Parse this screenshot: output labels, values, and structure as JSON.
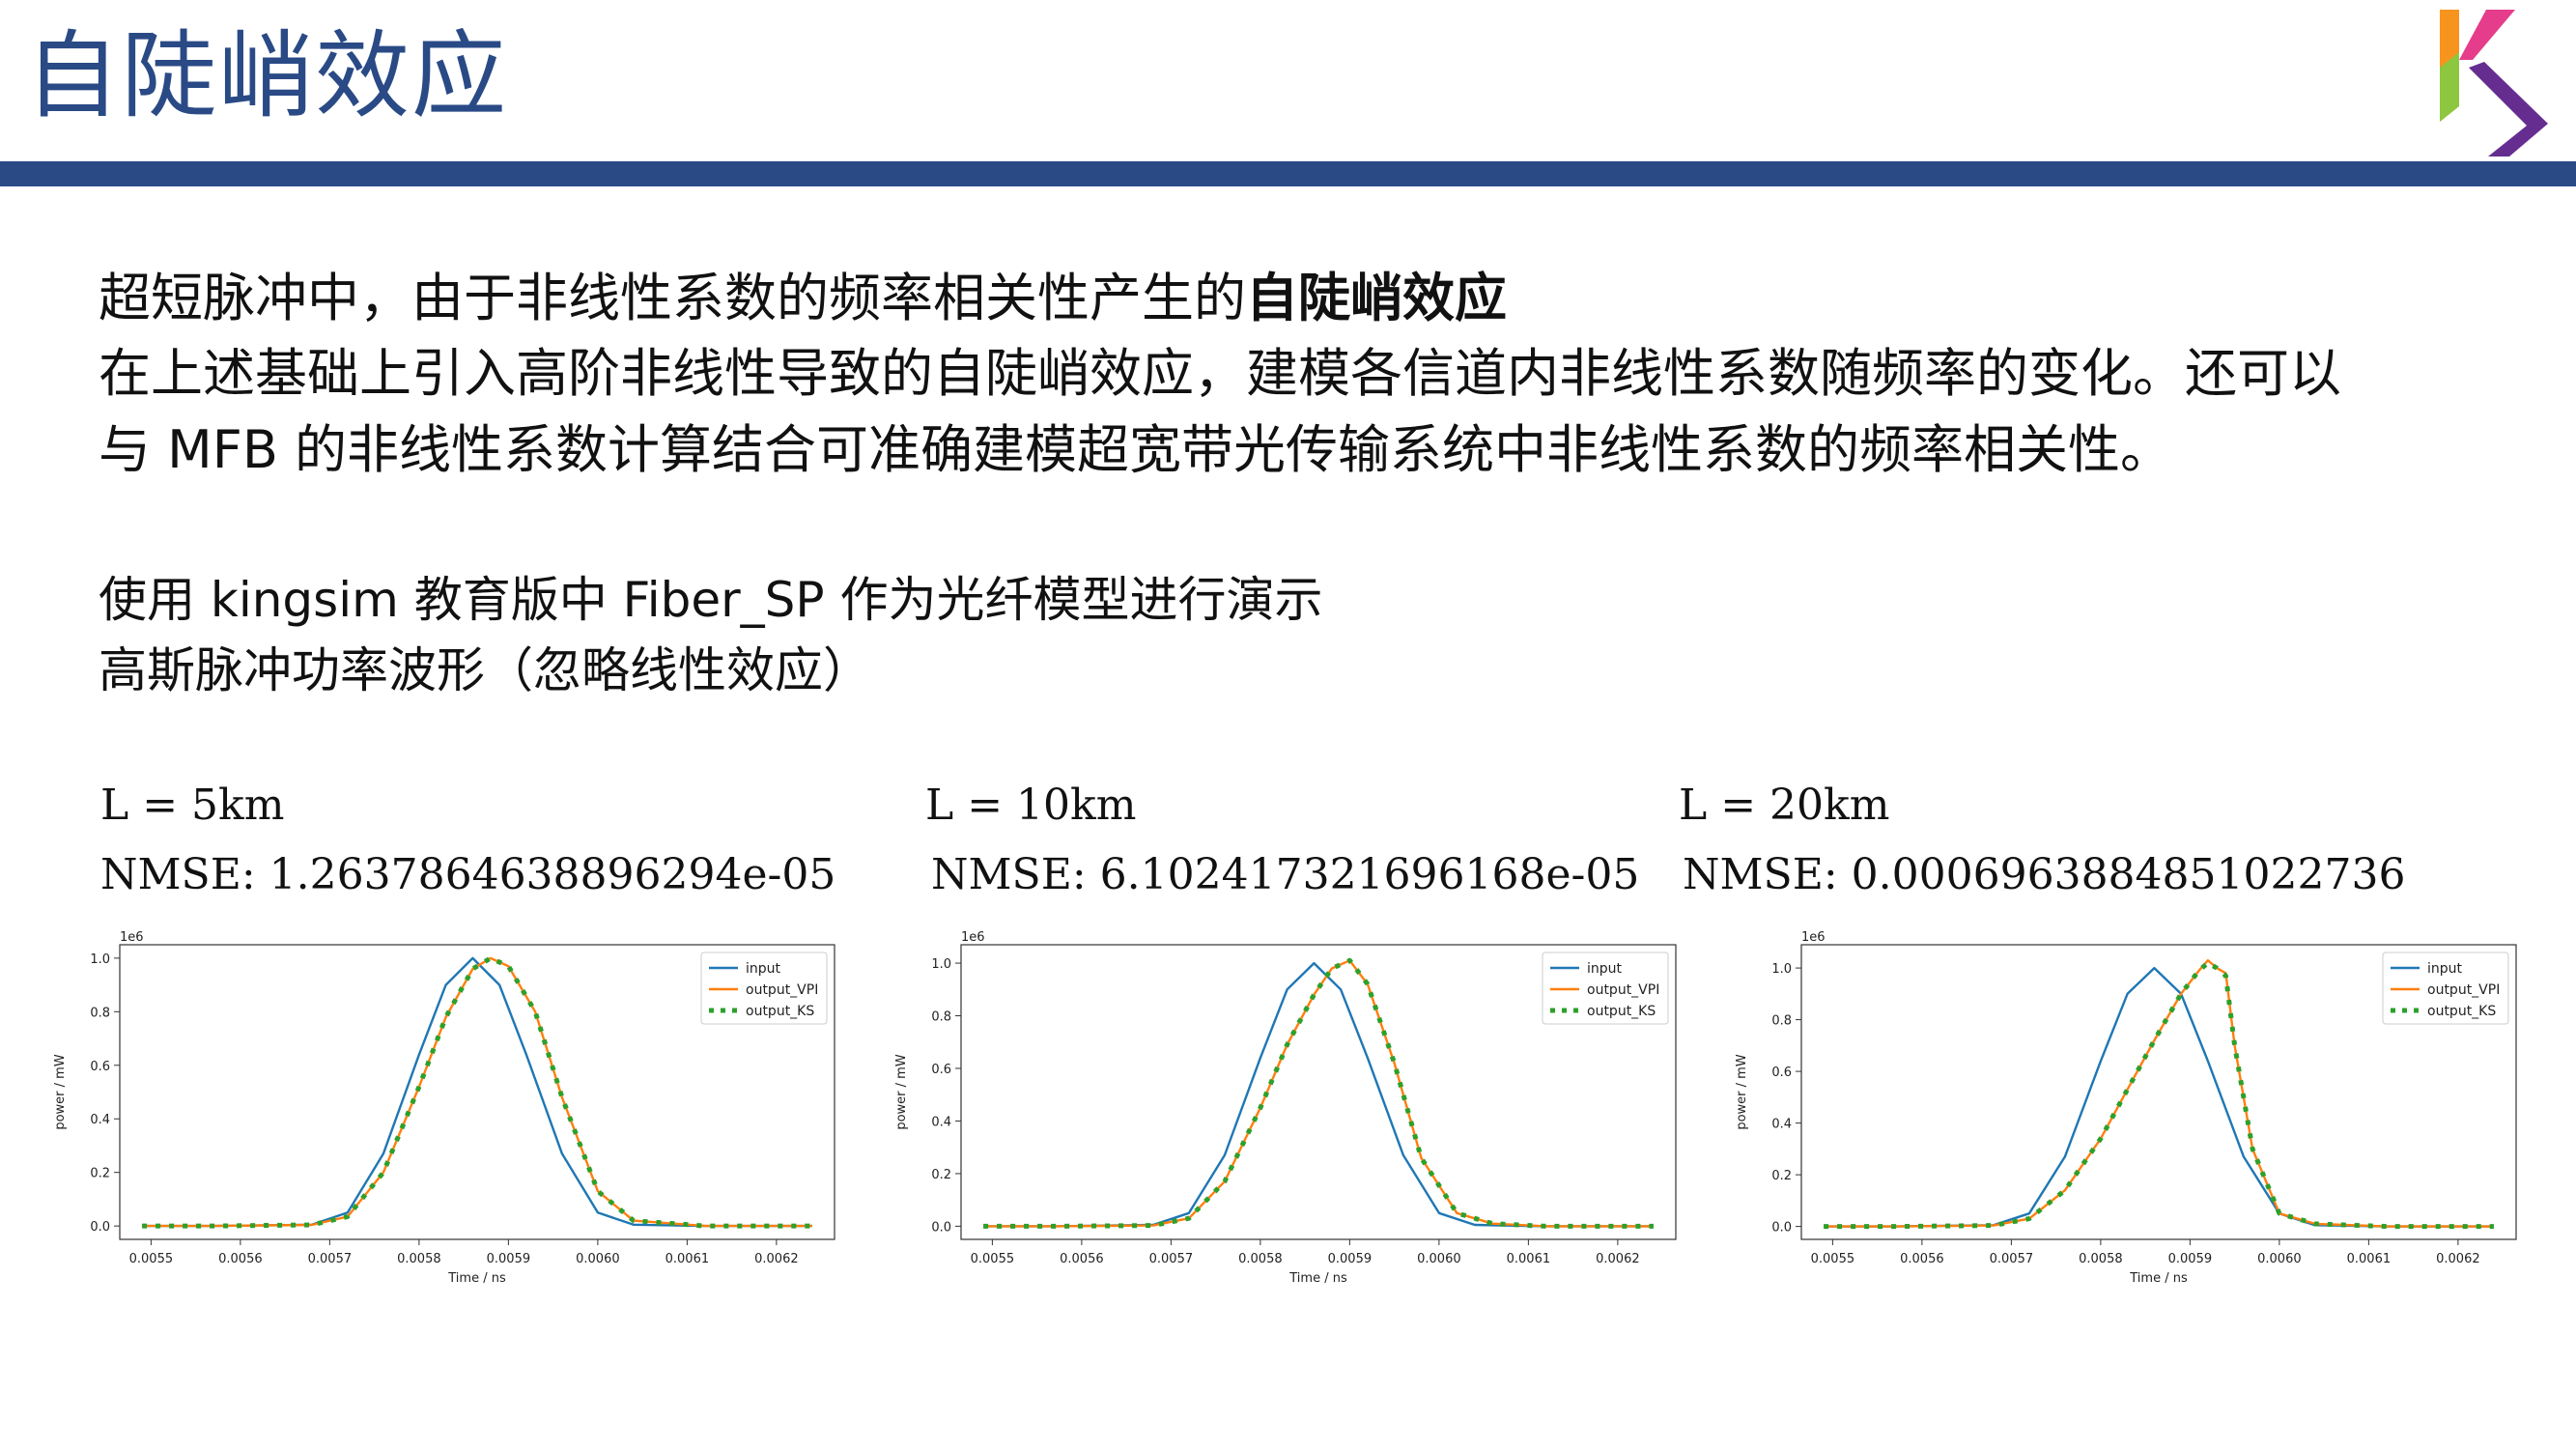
{
  "header": {
    "title": "自陡峭效应",
    "logo_colors": [
      "#f7941d",
      "#8dc63f",
      "#662d91",
      "#e63c8c"
    ]
  },
  "intro": {
    "line1_prefix": "超短脉冲中，由于非线性系数的频率相关性产生的",
    "line1_bold": "自陡峭效应",
    "line2": "在上述基础上引入高阶非线性导致的自陡峭效应，建模各信道内非线性系数随频率的变化。还可以",
    "line3": "与 MFB 的非线性系数计算结合可准确建模超宽带光传输系统中非线性系数的频率相关性。"
  },
  "demo": {
    "line1": "使用 kingsim 教育版中 Fiber_SP 作为光纤模型进行演示",
    "line2": "高斯脉冲功率波形（忽略线性效应）"
  },
  "cases": [
    {
      "length": "L = 5km",
      "nmse": "NMSE: 1.2637864638896294e-05"
    },
    {
      "length": "L = 10km",
      "nmse": "NMSE: 6.102417321696168e-05"
    },
    {
      "length": "L = 20km",
      "nmse": "NMSE: 0.0006963884851022736"
    }
  ],
  "chart_data": [
    {
      "type": "line",
      "xlabel": "Time / ns",
      "ylabel": "power / mW",
      "y_scale_label": "1e6",
      "xlim": [
        0.005465,
        0.006265
      ],
      "ylim": [
        -0.05,
        1.05
      ],
      "xticks": [
        "0.0055",
        "0.0056",
        "0.0057",
        "0.0058",
        "0.0059",
        "0.0060",
        "0.0061",
        "0.0062"
      ],
      "yticks": [
        "0.0",
        "0.2",
        "0.4",
        "0.6",
        "0.8",
        "1.0"
      ],
      "legend_position": "top-right",
      "series": [
        {
          "name": "input",
          "color": "#1f77b4",
          "style": "solid",
          "x": [
            0.00549,
            0.00557,
            0.00568,
            0.00572,
            0.00576,
            0.0058,
            0.00583,
            0.00586,
            0.00589,
            0.00592,
            0.00596,
            0.006,
            0.00604,
            0.00612,
            0.00624
          ],
          "y": [
            0.0,
            0.0,
            0.005,
            0.05,
            0.27,
            0.64,
            0.9,
            1.0,
            0.9,
            0.64,
            0.27,
            0.05,
            0.005,
            0.0,
            0.0
          ]
        },
        {
          "name": "output_VPI",
          "color": "#ff7f0e",
          "style": "solid",
          "x": [
            0.00549,
            0.00557,
            0.00568,
            0.00572,
            0.00576,
            0.0058,
            0.00583,
            0.00586,
            0.00588,
            0.0059,
            0.00593,
            0.00596,
            0.006,
            0.00604,
            0.00612,
            0.00624
          ],
          "y": [
            0.0,
            0.0,
            0.004,
            0.035,
            0.2,
            0.52,
            0.78,
            0.96,
            1.0,
            0.97,
            0.8,
            0.48,
            0.13,
            0.02,
            0.0,
            0.0
          ]
        },
        {
          "name": "output_KS",
          "color": "#2ca02c",
          "style": "dotted",
          "x": [
            0.00549,
            0.00557,
            0.00568,
            0.00572,
            0.00576,
            0.0058,
            0.00583,
            0.00586,
            0.00588,
            0.0059,
            0.00593,
            0.00596,
            0.006,
            0.00604,
            0.00612,
            0.00624
          ],
          "y": [
            0.0,
            0.0,
            0.004,
            0.035,
            0.2,
            0.52,
            0.78,
            0.96,
            1.0,
            0.97,
            0.8,
            0.48,
            0.13,
            0.02,
            0.0,
            0.0
          ]
        }
      ]
    },
    {
      "type": "line",
      "xlabel": "Time / ns",
      "ylabel": "power / mW",
      "y_scale_label": "1e6",
      "xlim": [
        0.005465,
        0.006265
      ],
      "ylim": [
        -0.05,
        1.07
      ],
      "xticks": [
        "0.0055",
        "0.0056",
        "0.0057",
        "0.0058",
        "0.0059",
        "0.0060",
        "0.0061",
        "0.0062"
      ],
      "yticks": [
        "0.0",
        "0.2",
        "0.4",
        "0.6",
        "0.8",
        "1.0"
      ],
      "legend_position": "top-right",
      "series": [
        {
          "name": "input",
          "color": "#1f77b4",
          "style": "solid",
          "x": [
            0.00549,
            0.00557,
            0.00568,
            0.00572,
            0.00576,
            0.0058,
            0.00583,
            0.00586,
            0.00589,
            0.00592,
            0.00596,
            0.006,
            0.00604,
            0.00612,
            0.00624
          ],
          "y": [
            0.0,
            0.0,
            0.005,
            0.05,
            0.27,
            0.64,
            0.9,
            1.0,
            0.9,
            0.64,
            0.27,
            0.05,
            0.005,
            0.0,
            0.0
          ]
        },
        {
          "name": "output_VPI",
          "color": "#ff7f0e",
          "style": "solid",
          "x": [
            0.00549,
            0.00557,
            0.00568,
            0.00572,
            0.00576,
            0.0058,
            0.00583,
            0.00586,
            0.00588,
            0.0059,
            0.00592,
            0.00595,
            0.00598,
            0.00602,
            0.00606,
            0.00612,
            0.00624
          ],
          "y": [
            0.0,
            0.0,
            0.003,
            0.03,
            0.17,
            0.45,
            0.69,
            0.88,
            0.98,
            1.01,
            0.92,
            0.62,
            0.26,
            0.05,
            0.01,
            0.0,
            0.0
          ]
        },
        {
          "name": "output_KS",
          "color": "#2ca02c",
          "style": "dotted",
          "x": [
            0.00549,
            0.00557,
            0.00568,
            0.00572,
            0.00576,
            0.0058,
            0.00583,
            0.00586,
            0.00588,
            0.0059,
            0.00592,
            0.00595,
            0.00598,
            0.00602,
            0.00606,
            0.00612,
            0.00624
          ],
          "y": [
            0.0,
            0.0,
            0.003,
            0.03,
            0.17,
            0.45,
            0.69,
            0.88,
            0.98,
            1.01,
            0.92,
            0.62,
            0.26,
            0.05,
            0.01,
            0.0,
            0.0
          ]
        }
      ]
    },
    {
      "type": "line",
      "xlabel": "Time / ns",
      "ylabel": "power / mW",
      "y_scale_label": "1e6",
      "xlim": [
        0.005465,
        0.006265
      ],
      "ylim": [
        -0.05,
        1.09
      ],
      "xticks": [
        "0.0055",
        "0.0056",
        "0.0057",
        "0.0058",
        "0.0059",
        "0.0060",
        "0.0061",
        "0.0062"
      ],
      "yticks": [
        "0.0",
        "0.2",
        "0.4",
        "0.6",
        "0.8",
        "1.0"
      ],
      "legend_position": "top-right",
      "series": [
        {
          "name": "input",
          "color": "#1f77b4",
          "style": "solid",
          "x": [
            0.00549,
            0.00557,
            0.00568,
            0.00572,
            0.00576,
            0.0058,
            0.00583,
            0.00586,
            0.00589,
            0.00592,
            0.00596,
            0.006,
            0.00604,
            0.00612,
            0.00624
          ],
          "y": [
            0.0,
            0.0,
            0.005,
            0.05,
            0.27,
            0.64,
            0.9,
            1.0,
            0.9,
            0.64,
            0.27,
            0.05,
            0.005,
            0.0,
            0.0
          ]
        },
        {
          "name": "output_VPI",
          "color": "#ff7f0e",
          "style": "solid",
          "x": [
            0.00549,
            0.00557,
            0.00568,
            0.00572,
            0.00576,
            0.0058,
            0.00583,
            0.00586,
            0.00589,
            0.00591,
            0.00592,
            0.00593,
            0.00594,
            0.00595,
            0.00597,
            0.006,
            0.00604,
            0.00612,
            0.00624
          ],
          "y": [
            0.0,
            0.0,
            0.004,
            0.03,
            0.14,
            0.34,
            0.53,
            0.72,
            0.9,
            0.99,
            1.03,
            1.0,
            0.98,
            0.7,
            0.3,
            0.05,
            0.01,
            0.0,
            0.0
          ]
        },
        {
          "name": "output_KS",
          "color": "#2ca02c",
          "style": "dotted",
          "x": [
            0.00549,
            0.00557,
            0.00568,
            0.00572,
            0.00576,
            0.0058,
            0.00583,
            0.00586,
            0.00589,
            0.00591,
            0.00592,
            0.00593,
            0.00594,
            0.00595,
            0.00597,
            0.006,
            0.00604,
            0.00612,
            0.00624
          ],
          "y": [
            0.0,
            0.0,
            0.004,
            0.03,
            0.14,
            0.34,
            0.53,
            0.72,
            0.9,
            0.99,
            1.02,
            1.0,
            0.97,
            0.7,
            0.3,
            0.05,
            0.01,
            0.0,
            0.0
          ]
        }
      ]
    }
  ]
}
